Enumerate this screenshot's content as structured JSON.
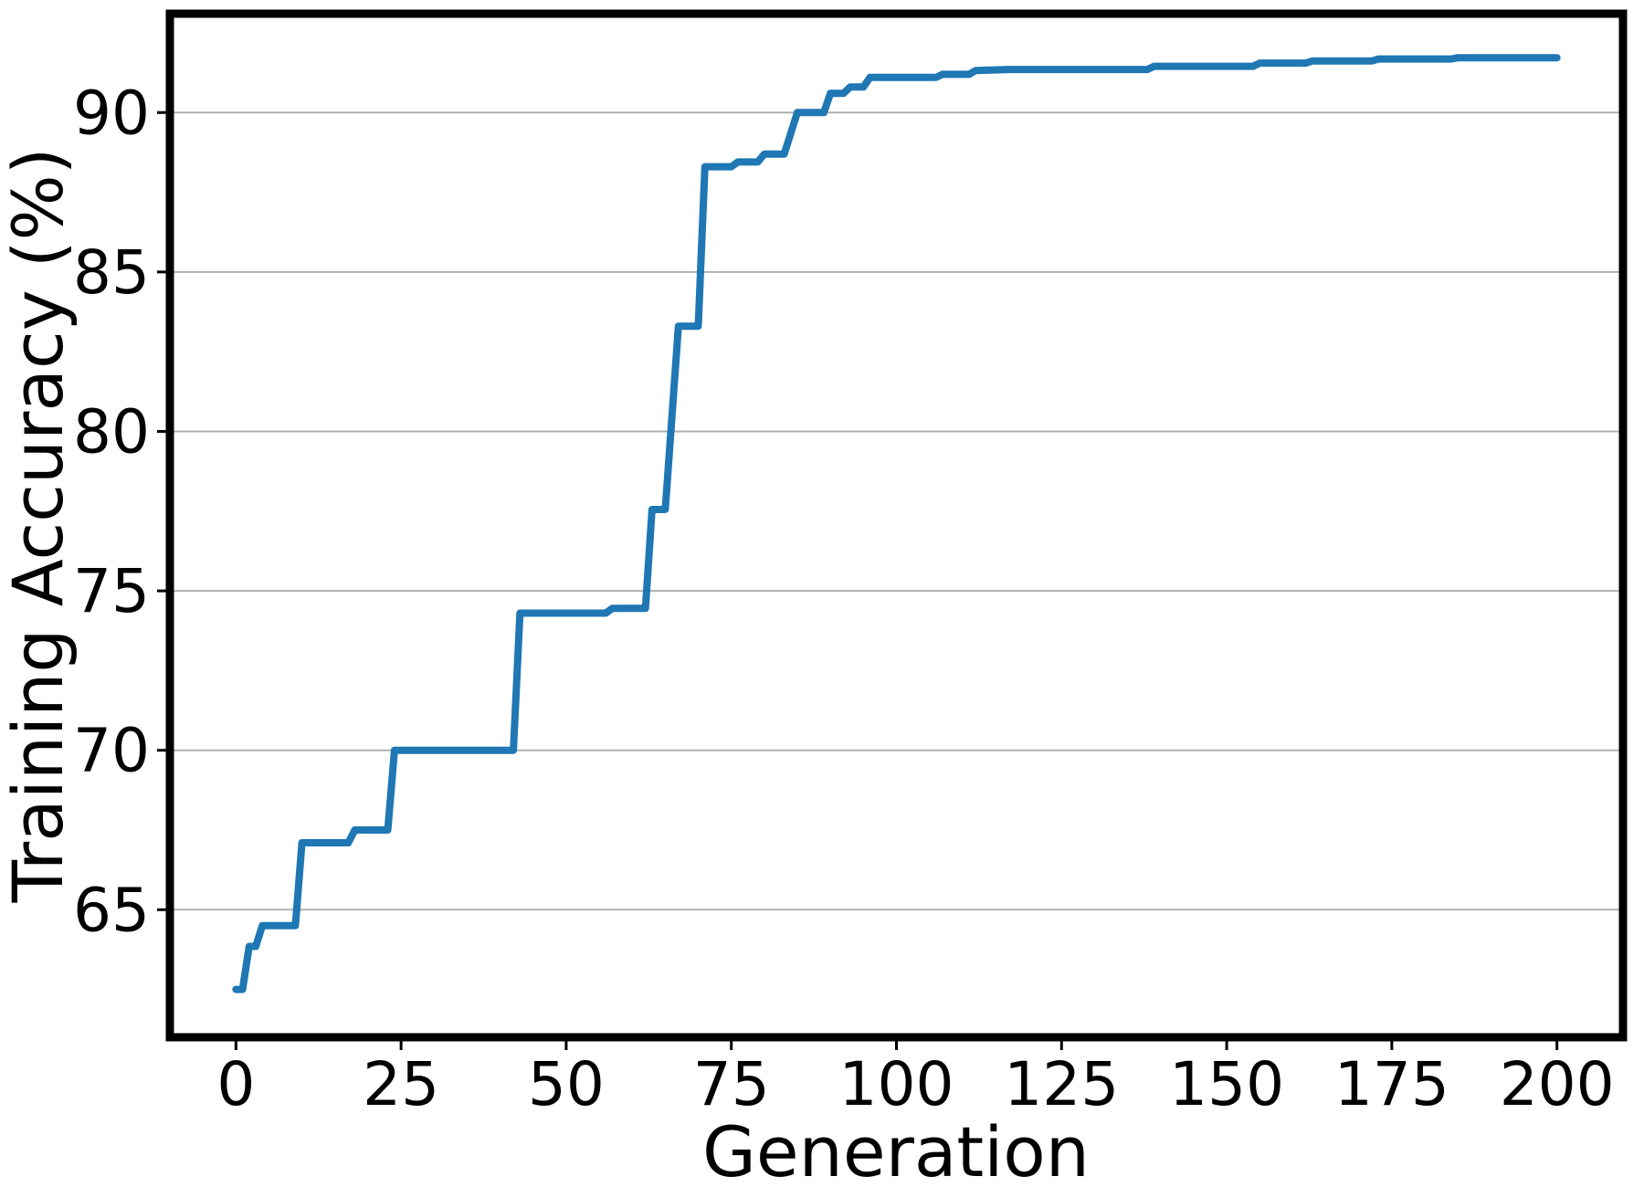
{
  "chart_data": {
    "type": "line",
    "title": "",
    "xlabel": "Generation",
    "ylabel": "Training Accuracy (%)",
    "x_ticks": [
      0,
      25,
      50,
      75,
      100,
      125,
      150,
      175,
      200
    ],
    "y_ticks": [
      65,
      70,
      75,
      80,
      85,
      90
    ],
    "xlim": [
      -10,
      210
    ],
    "ylim": [
      61.0,
      93.1
    ],
    "grid": "horizontal-only",
    "grid_color": "#b0b0b0",
    "legend": "none",
    "line_color": "#1f77b4",
    "line_width": 8,
    "spine_color": "#000000",
    "series": [
      {
        "name": "training-accuracy",
        "points": [
          [
            0,
            62.5
          ],
          [
            1,
            62.5
          ],
          [
            2,
            63.85
          ],
          [
            3,
            63.85
          ],
          [
            4,
            64.5
          ],
          [
            9,
            64.5
          ],
          [
            10,
            67.1
          ],
          [
            17,
            67.1
          ],
          [
            18,
            67.5
          ],
          [
            23,
            67.5
          ],
          [
            24,
            70.0
          ],
          [
            42,
            70.0
          ],
          [
            43,
            74.3
          ],
          [
            56,
            74.3
          ],
          [
            57,
            74.45
          ],
          [
            62,
            74.45
          ],
          [
            63,
            77.55
          ],
          [
            65,
            77.55
          ],
          [
            67,
            83.3
          ],
          [
            70,
            83.3
          ],
          [
            71,
            88.3
          ],
          [
            75,
            88.3
          ],
          [
            76,
            88.45
          ],
          [
            79,
            88.45
          ],
          [
            80,
            88.7
          ],
          [
            83,
            88.7
          ],
          [
            85,
            90.0
          ],
          [
            89,
            90.0
          ],
          [
            90,
            90.6
          ],
          [
            92,
            90.6
          ],
          [
            93,
            90.8
          ],
          [
            95,
            90.8
          ],
          [
            96,
            91.1
          ],
          [
            106,
            91.1
          ],
          [
            107,
            91.2
          ],
          [
            111,
            91.2
          ],
          [
            112,
            91.32
          ],
          [
            117,
            91.35
          ],
          [
            138,
            91.35
          ],
          [
            139,
            91.45
          ],
          [
            154,
            91.45
          ],
          [
            155,
            91.55
          ],
          [
            162,
            91.55
          ],
          [
            163,
            91.62
          ],
          [
            172,
            91.62
          ],
          [
            173,
            91.68
          ],
          [
            184,
            91.68
          ],
          [
            185,
            91.72
          ],
          [
            200,
            91.72
          ]
        ]
      }
    ]
  }
}
